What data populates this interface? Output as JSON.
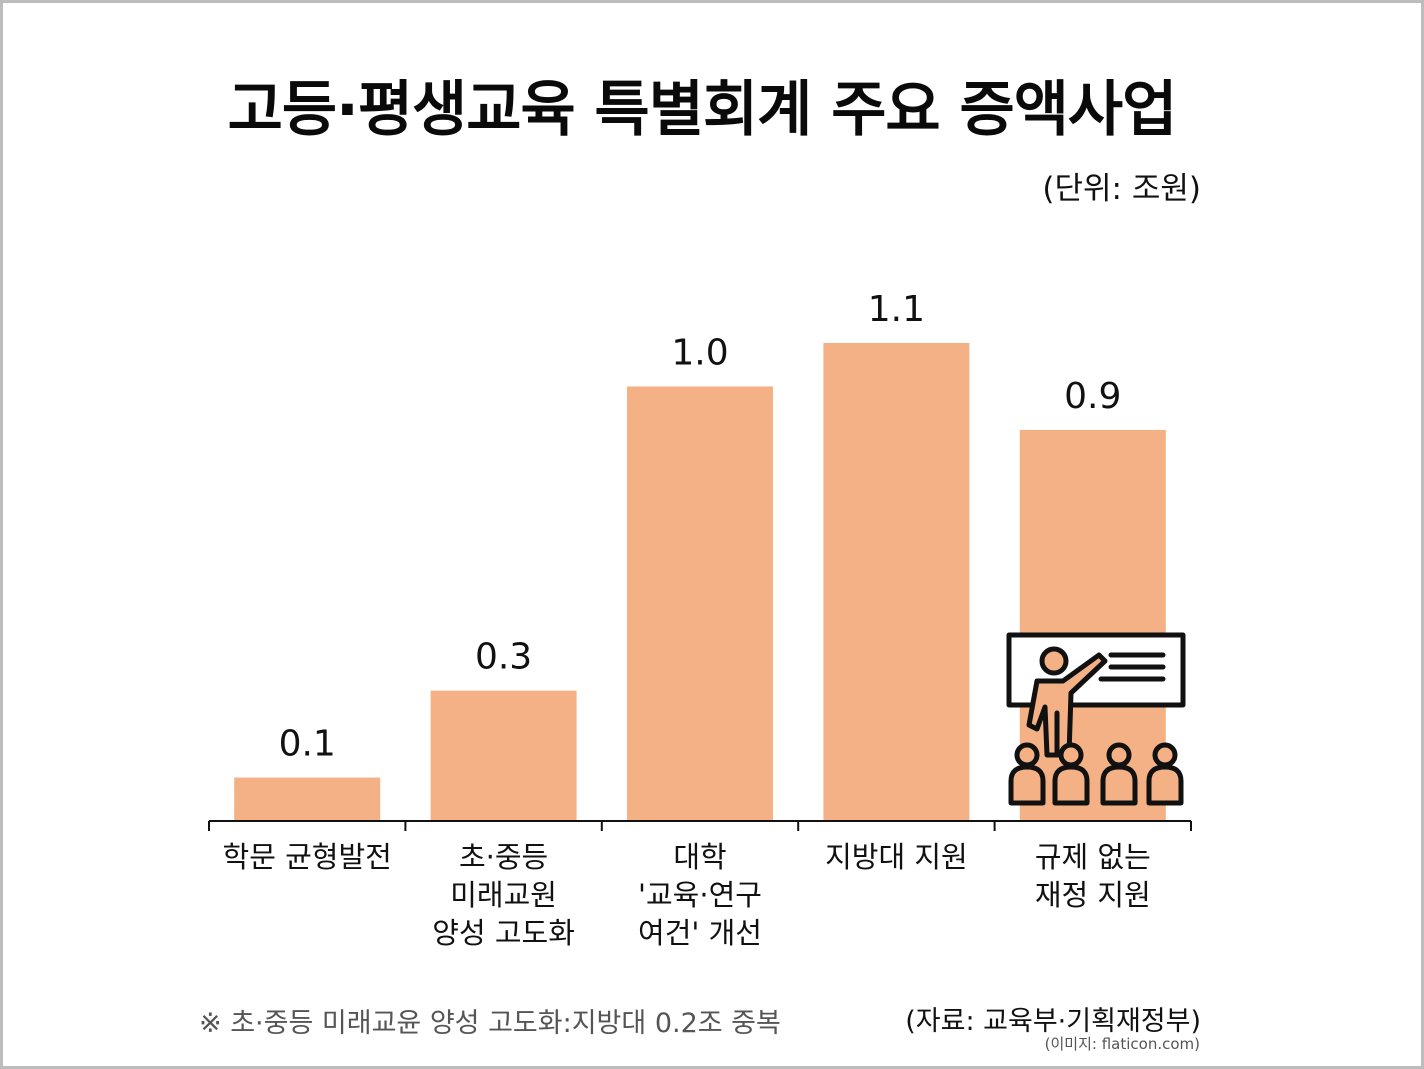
{
  "title": "고등·평생교육 특별회계 주요 증액사업",
  "unit": "(단위: 조원)",
  "footnote": "※ 초·중등 미래교윤 양성 고도화:지방대 0.2조 중복",
  "source": "(자료: 교육부·기획재정부)",
  "image_credit": "(이미지: flaticon.com)",
  "icon": "teacher-presentation-icon",
  "colors": {
    "bar": "#f4b185",
    "text": "#111111",
    "axis": "#111111"
  },
  "chart_data": {
    "type": "bar",
    "title": "고등·평생교육 특별회계 주요 증액사업",
    "ylabel": "",
    "unit": "조원",
    "ylim": [
      0,
      1.1
    ],
    "categories": [
      [
        "학문 균형발전"
      ],
      [
        "초·중등",
        "미래교원",
        "양성 고도화"
      ],
      [
        "대학",
        "'교육·연구",
        "여건' 개선"
      ],
      [
        "지방대 지원"
      ],
      [
        "규제 없는",
        "재정 지원"
      ]
    ],
    "values": [
      0.1,
      0.3,
      1.0,
      1.1,
      0.9
    ],
    "value_labels": [
      "0.1",
      "0.3",
      "1.0",
      "1.1",
      "0.9"
    ]
  }
}
